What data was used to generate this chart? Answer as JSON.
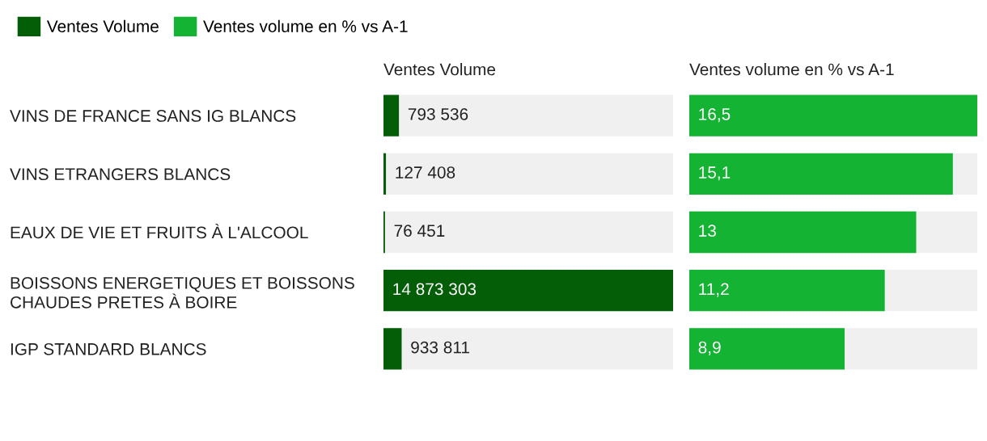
{
  "chart_data": [
    {
      "type": "bar",
      "orientation": "horizontal",
      "title": "Ventes Volume",
      "categories": [
        "VINS DE FRANCE SANS IG BLANCS",
        "VINS ETRANGERS BLANCS",
        "EAUX DE VIE ET FRUITS À L'ALCOOL",
        "BOISSONS ENERGETIQUES ET BOISSONS\nCHAUDES PRETES À BOIRE",
        "IGP STANDARD BLANCS"
      ],
      "series": [
        {
          "name": "Ventes Volume",
          "color": "#035e07",
          "values": [
            793536,
            127408,
            76451,
            14873303,
            933811
          ],
          "value_labels": [
            "793 536",
            "127 408",
            "76 451",
            "14 873 303",
            "933 811"
          ]
        }
      ],
      "legend": "top left"
    },
    {
      "type": "bar",
      "orientation": "horizontal",
      "title": "Ventes volume en % vs A-1",
      "categories": [
        null,
        null,
        null,
        null,
        null
      ],
      "series": [
        {
          "name": "Ventes volume en % vs A-1",
          "color": "#15b333",
          "values": [
            16.5,
            15.1,
            13,
            11.2,
            8.9
          ],
          "value_labels": [
            "16,5",
            "15,1",
            "13",
            "11,2",
            "8,9"
          ]
        }
      ],
      "legend": "top left"
    }
  ]
}
